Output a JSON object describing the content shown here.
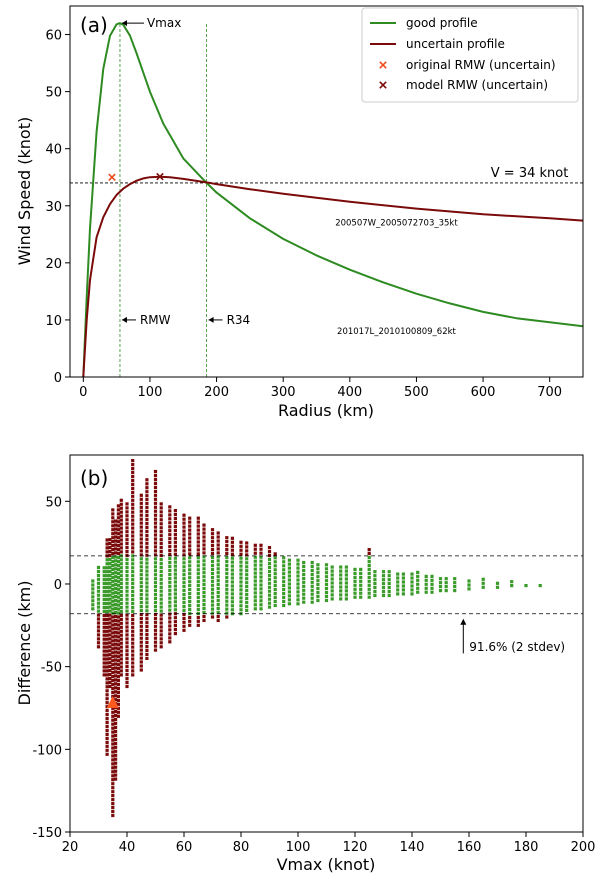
{
  "chart_data": [
    {
      "type": "line",
      "panel_label": "(a)",
      "xlabel": "Radius (km)",
      "ylabel": "Wind Speed (knot)",
      "xlim": [
        -20,
        750
      ],
      "ylim": [
        0,
        65
      ],
      "xticks": [
        0,
        100,
        200,
        300,
        400,
        500,
        600,
        700
      ],
      "yticks": [
        0,
        10,
        20,
        30,
        40,
        50,
        60
      ],
      "grid": false,
      "legend_position": "top-right",
      "series": [
        {
          "name": "good profile",
          "color": "#2e8b22",
          "x": [
            0,
            5,
            10,
            20,
            30,
            40,
            50,
            55,
            60,
            70,
            80,
            100,
            120,
            150,
            185,
            200,
            250,
            300,
            350,
            400,
            450,
            500,
            550,
            600,
            650,
            700,
            750
          ],
          "y": [
            0,
            14,
            26,
            43,
            54,
            59.8,
            61.8,
            62,
            61.7,
            59.8,
            56.7,
            50.0,
            44.4,
            38.3,
            34.0,
            32.3,
            27.8,
            24.2,
            21.3,
            18.8,
            16.6,
            14.6,
            12.9,
            11.4,
            10.3,
            9.6,
            8.9
          ]
        },
        {
          "name": "uncertain profile",
          "color": "#7b0a0a",
          "x": [
            0,
            5,
            10,
            20,
            30,
            40,
            50,
            60,
            70,
            80,
            90,
            100,
            115,
            130,
            150,
            185,
            200,
            250,
            300,
            400,
            500,
            600,
            700,
            750
          ],
          "y": [
            0,
            10,
            17,
            24.5,
            28,
            30.3,
            31.9,
            33.0,
            33.8,
            34.4,
            34.8,
            35.0,
            35.1,
            35.0,
            34.7,
            34.1,
            33.8,
            32.9,
            32.1,
            30.7,
            29.5,
            28.5,
            27.8,
            27.4
          ]
        }
      ],
      "markers": [
        {
          "name": "original RMW (uncertain)",
          "color": "#f04a1a",
          "x": 43,
          "y": 35
        },
        {
          "name": "model RMW (uncertain)",
          "color": "#7b0a0a",
          "x": 115,
          "y": 35.1
        }
      ],
      "reference_lines": [
        {
          "type": "horizontal",
          "value": 34,
          "label": "V = 34 knot",
          "color": "#000000"
        },
        {
          "type": "vertical",
          "value": 55,
          "color": "#2e8b22"
        },
        {
          "type": "vertical",
          "value": 185,
          "color": "#2e8b22"
        }
      ],
      "annotations": [
        {
          "text": "Vmax",
          "x": 55,
          "y": 62
        },
        {
          "text": "RMW",
          "x": 55,
          "y": 10
        },
        {
          "text": "R34",
          "x": 185,
          "y": 10
        },
        {
          "text": "200507W_2005072703_35kt",
          "x": 470,
          "y": 26.5
        },
        {
          "text": "201017L_2010100809_62kt",
          "x": 470,
          "y": 7.5
        }
      ]
    },
    {
      "type": "scatter",
      "panel_label": "(b)",
      "xlabel": "Vmax (knot)",
      "ylabel": "Difference (km)",
      "xlim": [
        20,
        200
      ],
      "ylim": [
        -150,
        78
      ],
      "xticks": [
        20,
        40,
        60,
        80,
        100,
        120,
        140,
        160,
        180,
        200
      ],
      "yticks": [
        -150,
        -100,
        -50,
        0,
        50
      ],
      "grid": false,
      "thresholds": [
        17,
        -18
      ],
      "series": [
        {
          "name": "within 2 stdev",
          "color": "#3a9a2a"
        },
        {
          "name": "beyond 2 stdev",
          "color": "#7b0a0a"
        }
      ],
      "columns": [
        {
          "x": 28,
          "lo": -15,
          "hi": 3
        },
        {
          "x": 30,
          "lo": -38,
          "hi": 10
        },
        {
          "x": 32,
          "lo": -55,
          "hi": 12
        },
        {
          "x": 33,
          "lo": -103,
          "hi": 28
        },
        {
          "x": 34,
          "lo": -62,
          "hi": 28
        },
        {
          "x": 35,
          "lo": -140,
          "hi": 45
        },
        {
          "x": 36,
          "lo": -118,
          "hi": 38
        },
        {
          "x": 37,
          "lo": -80,
          "hi": 48
        },
        {
          "x": 38,
          "lo": -55,
          "hi": 52
        },
        {
          "x": 40,
          "lo": -62,
          "hi": 50
        },
        {
          "x": 42,
          "lo": -55,
          "hi": 75
        },
        {
          "x": 45,
          "lo": -52,
          "hi": 55
        },
        {
          "x": 47,
          "lo": -45,
          "hi": 65
        },
        {
          "x": 50,
          "lo": -40,
          "hi": 68
        },
        {
          "x": 52,
          "lo": -38,
          "hi": 50
        },
        {
          "x": 55,
          "lo": -35,
          "hi": 48
        },
        {
          "x": 57,
          "lo": -30,
          "hi": 45
        },
        {
          "x": 60,
          "lo": -28,
          "hi": 42
        },
        {
          "x": 62,
          "lo": -25,
          "hi": 40
        },
        {
          "x": 65,
          "lo": -25,
          "hi": 40
        },
        {
          "x": 67,
          "lo": -22,
          "hi": 36
        },
        {
          "x": 70,
          "lo": -20,
          "hi": 35
        },
        {
          "x": 72,
          "lo": -22,
          "hi": 33
        },
        {
          "x": 75,
          "lo": -20,
          "hi": 30
        },
        {
          "x": 77,
          "lo": -18,
          "hi": 28
        },
        {
          "x": 80,
          "lo": -18,
          "hi": 27
        },
        {
          "x": 82,
          "lo": -16,
          "hi": 25
        },
        {
          "x": 85,
          "lo": -15,
          "hi": 25
        },
        {
          "x": 87,
          "lo": -15,
          "hi": 24
        },
        {
          "x": 90,
          "lo": -14,
          "hi": 22
        },
        {
          "x": 92,
          "lo": -13,
          "hi": 20
        },
        {
          "x": 95,
          "lo": -13,
          "hi": 18
        },
        {
          "x": 97,
          "lo": -12,
          "hi": 16
        },
        {
          "x": 100,
          "lo": -12,
          "hi": 15
        },
        {
          "x": 102,
          "lo": -11,
          "hi": 14
        },
        {
          "x": 105,
          "lo": -11,
          "hi": 13
        },
        {
          "x": 107,
          "lo": -10,
          "hi": 13
        },
        {
          "x": 110,
          "lo": -10,
          "hi": 12
        },
        {
          "x": 112,
          "lo": -9,
          "hi": 12
        },
        {
          "x": 115,
          "lo": -9,
          "hi": 11
        },
        {
          "x": 117,
          "lo": -9,
          "hi": 11
        },
        {
          "x": 120,
          "lo": -8,
          "hi": 10
        },
        {
          "x": 122,
          "lo": -8,
          "hi": 10
        },
        {
          "x": 125,
          "lo": -8,
          "hi": 23
        },
        {
          "x": 127,
          "lo": -7,
          "hi": 9
        },
        {
          "x": 130,
          "lo": -7,
          "hi": 9
        },
        {
          "x": 132,
          "lo": -7,
          "hi": 8
        },
        {
          "x": 135,
          "lo": -6,
          "hi": 8
        },
        {
          "x": 137,
          "lo": -6,
          "hi": 8
        },
        {
          "x": 140,
          "lo": -6,
          "hi": 7
        },
        {
          "x": 142,
          "lo": -5,
          "hi": 7
        },
        {
          "x": 145,
          "lo": -5,
          "hi": 6
        },
        {
          "x": 147,
          "lo": -5,
          "hi": 6
        },
        {
          "x": 150,
          "lo": -4,
          "hi": 5
        },
        {
          "x": 152,
          "lo": -4,
          "hi": 5
        },
        {
          "x": 155,
          "lo": -4,
          "hi": 4
        },
        {
          "x": 160,
          "lo": -3,
          "hi": 4
        },
        {
          "x": 165,
          "lo": -2,
          "hi": 3
        },
        {
          "x": 170,
          "lo": -2,
          "hi": 2
        },
        {
          "x": 175,
          "lo": -1,
          "hi": 2
        },
        {
          "x": 180,
          "lo": -1,
          "hi": 1
        },
        {
          "x": 185,
          "lo": -1,
          "hi": 1
        }
      ],
      "highlight_marker": {
        "shape": "triangle",
        "color": "#ff5a1f",
        "x": 35,
        "y": -72
      },
      "annotations": [
        {
          "text": "91.6% (2 stdev)",
          "x": 158,
          "y": -38
        }
      ]
    }
  ]
}
